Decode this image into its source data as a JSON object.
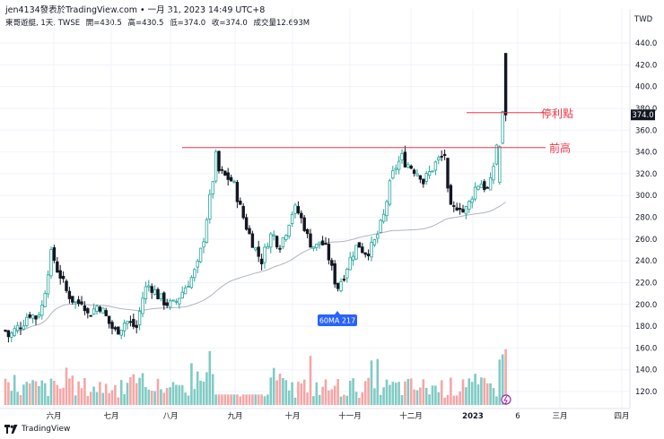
{
  "header": {
    "publisher": "jen4134發表於TradingView.com • 一月 31, 2023 14:49 UTC+8",
    "symbol": "東哥遊艇, 1天, TWSE",
    "open": "開=430.5",
    "high": "高=430.5",
    "low": "低=374.0",
    "close": "收=374.0",
    "volume": "成交量12.693M"
  },
  "footer": {
    "brand": "TradingView",
    "logo_icon": "tradingview-logo-icon"
  },
  "colors": {
    "up": "#26a69a",
    "down": "#131722",
    "up_hollow": "#ffffff",
    "vol_up": "#80cbc4",
    "vol_down": "#f4a7a7",
    "ma": "#b2b5be",
    "annot": "#f23645",
    "price_tag": "#131722",
    "ma_tag": "#2962ff"
  },
  "chart_data": {
    "type": "candlestick",
    "currency_label": "TWD",
    "y_ticks": [
      120,
      140,
      160,
      180,
      200,
      220,
      240,
      260,
      280,
      300,
      320,
      340,
      360,
      380,
      400,
      420,
      440
    ],
    "ylim": [
      108,
      450
    ],
    "x_tick_labels": [
      {
        "label": "六月",
        "x": 60
      },
      {
        "label": "七月",
        "x": 124
      },
      {
        "label": "八月",
        "x": 190
      },
      {
        "label": "九月",
        "x": 262
      },
      {
        "label": "十月",
        "x": 326
      },
      {
        "label": "十一月",
        "x": 390
      },
      {
        "label": "十二月",
        "x": 458
      },
      {
        "label": "2023",
        "x": 527
      },
      {
        "label": "6",
        "x": 577
      },
      {
        "label": "三月",
        "x": 624
      },
      {
        "label": "四月",
        "x": 693
      }
    ],
    "last_price": "374.0",
    "ma_label": "60MA 217",
    "annotations": [
      {
        "label": "停利點",
        "price": 376
      },
      {
        "label": "前高",
        "price": 344
      }
    ],
    "close_anchors": [
      [
        0,
        185
      ],
      [
        10,
        170
      ],
      [
        18,
        178
      ],
      [
        25,
        182
      ],
      [
        32,
        192
      ],
      [
        40,
        188
      ],
      [
        48,
        200
      ],
      [
        52,
        225
      ],
      [
        58,
        250
      ],
      [
        62,
        235
      ],
      [
        68,
        225
      ],
      [
        74,
        212
      ],
      [
        80,
        205
      ],
      [
        86,
        200
      ],
      [
        92,
        205
      ],
      [
        98,
        190
      ],
      [
        104,
        195
      ],
      [
        110,
        200
      ],
      [
        116,
        192
      ],
      [
        122,
        182
      ],
      [
        128,
        175
      ],
      [
        134,
        178
      ],
      [
        140,
        185
      ],
      [
        146,
        182
      ],
      [
        152,
        178
      ],
      [
        156,
        195
      ],
      [
        160,
        210
      ],
      [
        164,
        218
      ],
      [
        170,
        215
      ],
      [
        176,
        208
      ],
      [
        182,
        203
      ],
      [
        188,
        200
      ],
      [
        194,
        200
      ],
      [
        198,
        205
      ],
      [
        202,
        210
      ],
      [
        208,
        218
      ],
      [
        214,
        225
      ],
      [
        220,
        235
      ],
      [
        224,
        250
      ],
      [
        228,
        265
      ],
      [
        232,
        290
      ],
      [
        236,
        305
      ],
      [
        240,
        338
      ],
      [
        244,
        322
      ],
      [
        250,
        318
      ],
      [
        256,
        315
      ],
      [
        260,
        312
      ],
      [
        264,
        300
      ],
      [
        268,
        288
      ],
      [
        272,
        278
      ],
      [
        276,
        268
      ],
      [
        280,
        260
      ],
      [
        284,
        252
      ],
      [
        288,
        245
      ],
      [
        292,
        240
      ],
      [
        296,
        252
      ],
      [
        300,
        262
      ],
      [
        304,
        265
      ],
      [
        308,
        258
      ],
      [
        312,
        255
      ],
      [
        316,
        262
      ],
      [
        320,
        270
      ],
      [
        324,
        282
      ],
      [
        328,
        288
      ],
      [
        332,
        285
      ],
      [
        336,
        278
      ],
      [
        340,
        270
      ],
      [
        344,
        258
      ],
      [
        348,
        255
      ],
      [
        352,
        252
      ],
      [
        356,
        258
      ],
      [
        360,
        255
      ],
      [
        364,
        250
      ],
      [
        368,
        238
      ],
      [
        372,
        225
      ],
      [
        376,
        215
      ],
      [
        380,
        222
      ],
      [
        384,
        228
      ],
      [
        388,
        238
      ],
      [
        392,
        245
      ],
      [
        396,
        252
      ],
      [
        400,
        255
      ],
      [
        404,
        250
      ],
      [
        408,
        248
      ],
      [
        412,
        250
      ],
      [
        416,
        255
      ],
      [
        420,
        262
      ],
      [
        424,
        272
      ],
      [
        428,
        282
      ],
      [
        432,
        300
      ],
      [
        436,
        315
      ],
      [
        440,
        325
      ],
      [
        444,
        330
      ],
      [
        448,
        335
      ],
      [
        452,
        330
      ],
      [
        456,
        328
      ],
      [
        460,
        325
      ],
      [
        464,
        322
      ],
      [
        468,
        320
      ],
      [
        472,
        312
      ],
      [
        476,
        318
      ],
      [
        480,
        322
      ],
      [
        484,
        328
      ],
      [
        488,
        332
      ],
      [
        492,
        335
      ],
      [
        496,
        338
      ],
      [
        500,
        290
      ],
      [
        504,
        285
      ],
      [
        508,
        290
      ],
      [
        512,
        292
      ],
      [
        516,
        285
      ],
      [
        520,
        288
      ],
      [
        524,
        295
      ],
      [
        528,
        305
      ],
      [
        532,
        310
      ],
      [
        536,
        312
      ],
      [
        540,
        308
      ],
      [
        544,
        305
      ],
      [
        548,
        315
      ],
      [
        552,
        340
      ],
      [
        556,
        360
      ],
      [
        559,
        378
      ],
      [
        564,
        374
      ]
    ],
    "volume_range": [
      0,
      18.5
    ]
  }
}
